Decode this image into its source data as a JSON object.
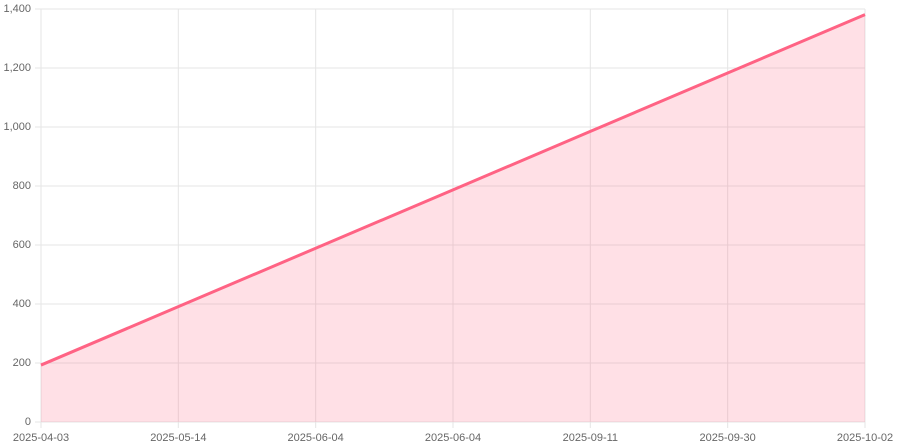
{
  "chart_data": {
    "type": "line",
    "categories": [
      "2025-04-03",
      "2025-05-14",
      "2025-06-04",
      "2025-06-04",
      "2025-09-11",
      "2025-09-30",
      "2025-10-02"
    ],
    "values": [
      193,
      391,
      589,
      787,
      985,
      1183,
      1381
    ],
    "color": "#ff6384",
    "area_color": "rgba(255,99,132,0.2)",
    "filled": true,
    "ylim": [
      0,
      1400
    ],
    "yticks": [
      0,
      200,
      400,
      600,
      800,
      {
        "value": 1000,
        "label": "1,000"
      },
      {
        "value": 1200,
        "label": "1,200"
      },
      {
        "value": 1400,
        "label": "1,400"
      }
    ],
    "grid": true
  }
}
